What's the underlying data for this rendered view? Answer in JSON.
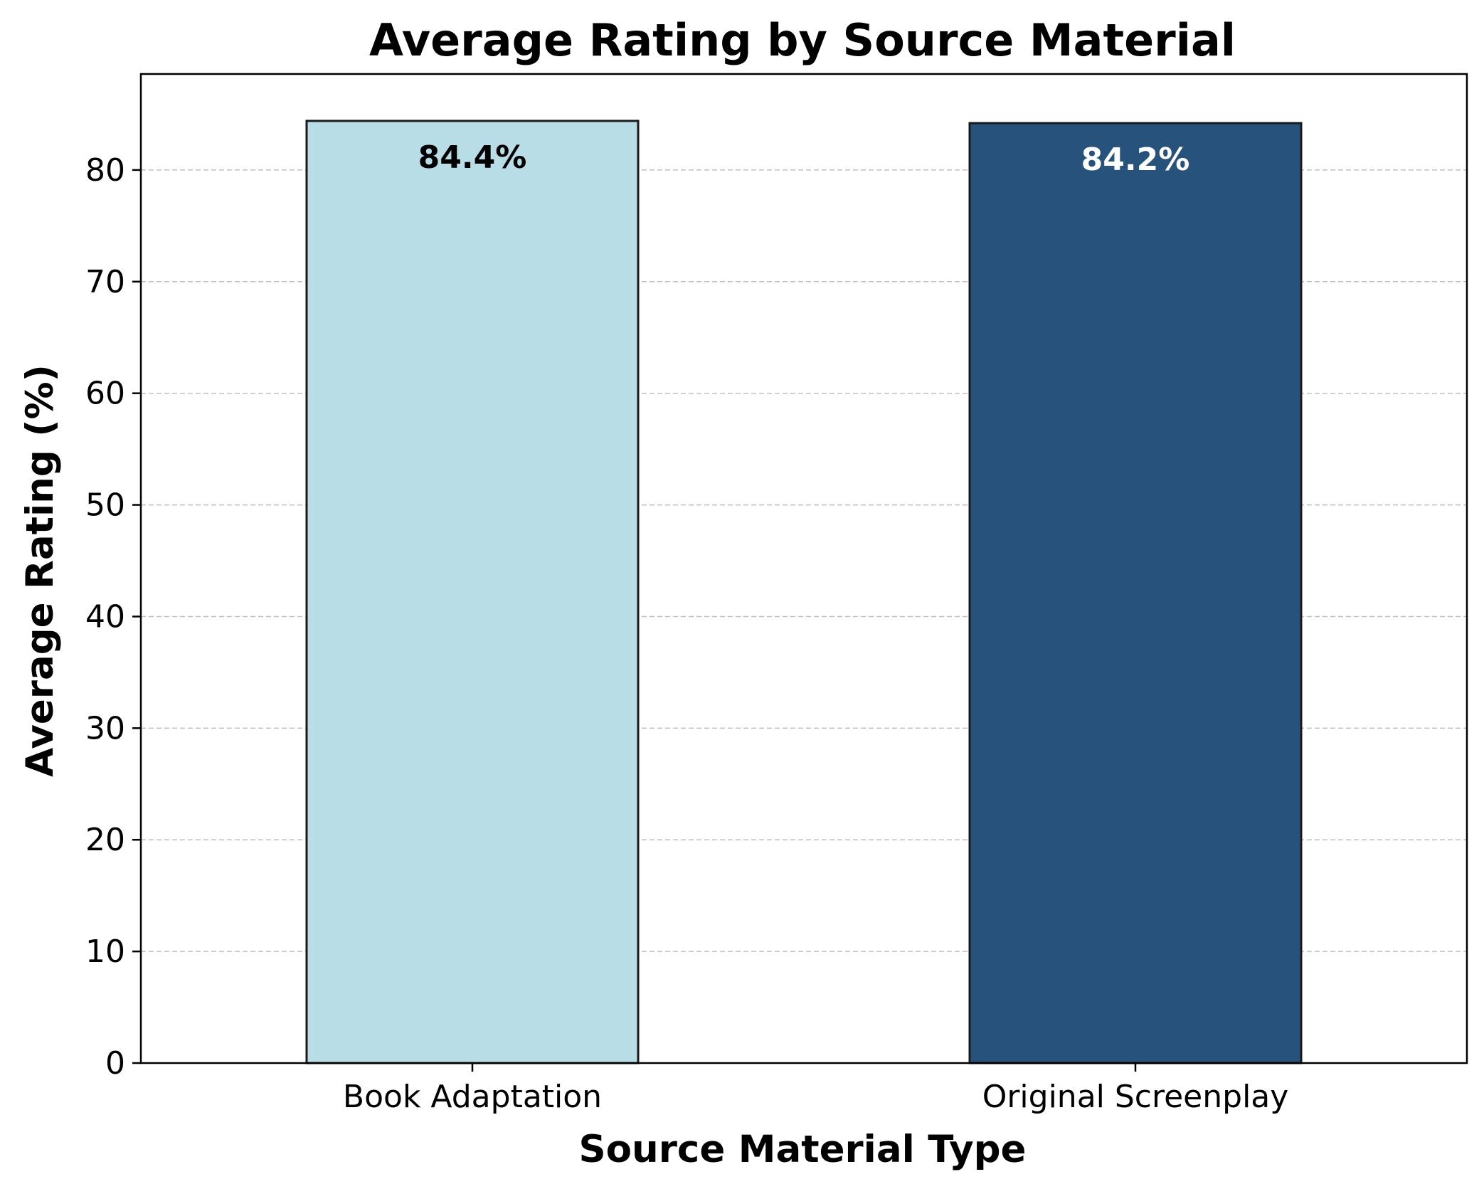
{
  "chart_data": {
    "type": "bar",
    "title": "Average Rating by Source Material",
    "xlabel": "Source Material Type",
    "ylabel": "Average Rating (%)",
    "categories": [
      "Book Adaptation",
      "Original Screenplay"
    ],
    "values": [
      84.4,
      84.2
    ],
    "value_labels": [
      "84.4%",
      "84.2%"
    ],
    "ylim": [
      0,
      88.6
    ],
    "yticks": [
      0,
      10,
      20,
      30,
      40,
      50,
      60,
      70,
      80
    ],
    "ytick_labels": [
      "0",
      "10",
      "20",
      "30",
      "40",
      "50",
      "60",
      "70",
      "80"
    ],
    "grid": "horizontal dashed",
    "legend": "none",
    "colors": {
      "bars": [
        "#b8dde7",
        "#26527c"
      ],
      "bar_edge": "#1a1a1a",
      "value_label_text": [
        "#000000",
        "#ffffff"
      ],
      "grid": "#bfbfbf",
      "axes": "#000000"
    }
  }
}
